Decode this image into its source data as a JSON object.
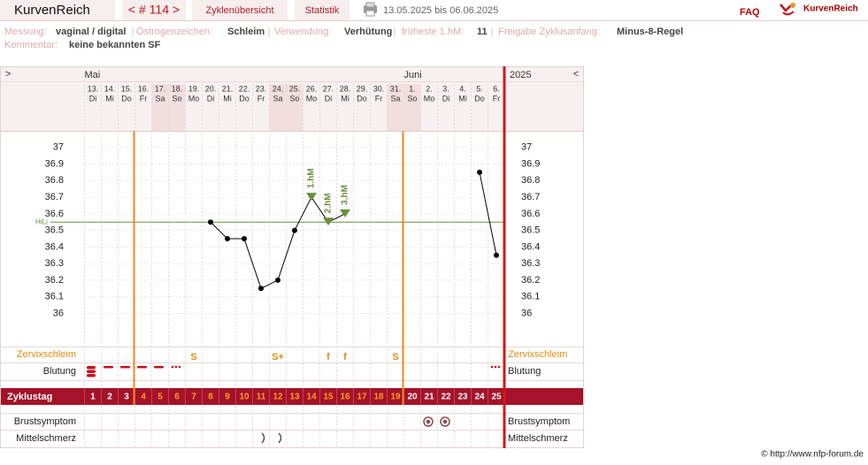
{
  "header": {
    "app": "KurvenReich",
    "cycle_nav": "< # 114 >",
    "tabs": [
      "Zyklenübersicht",
      "Statistik"
    ],
    "date_range": "13.05.2025 bis 06.06.2025",
    "faq": "FAQ",
    "logo": "KurvenReich"
  },
  "info": {
    "rows": [
      [
        {
          "label": "Messung:",
          "value": "vaginal / digital"
        },
        {
          "label": "Östrogenzeichen:",
          "value": "Schleim"
        },
        {
          "label": "Verwendung:",
          "value": "Verhütung"
        },
        {
          "label": "früheste 1.hM:",
          "value": "11"
        },
        {
          "label": "Freigabe Zyklusanfang:",
          "value": "Minus-8-Regel"
        }
      ],
      [
        {
          "label": "Kommentar:",
          "value": "keine bekannten SF"
        }
      ]
    ]
  },
  "chart_data": {
    "type": "line",
    "nav_next": ">",
    "nav_prev": "<",
    "year": "2025",
    "months": [
      {
        "label": "Mai",
        "start": "13."
      },
      {
        "label": "Juni",
        "start": "1."
      }
    ],
    "days": [
      "13.",
      "14.",
      "15.",
      "16.",
      "17.",
      "18.",
      "19.",
      "20.",
      "21.",
      "22.",
      "23.",
      "24.",
      "25.",
      "26.",
      "27.",
      "28.",
      "29.",
      "30.",
      "31.",
      "1.",
      "2.",
      "3.",
      "4.",
      "5.",
      "6."
    ],
    "weekdays": [
      "Di",
      "Mi",
      "Do",
      "Fr",
      "Sa",
      "So",
      "Mo",
      "Di",
      "Mi",
      "Do",
      "Fr",
      "Sa",
      "So",
      "Mo",
      "Di",
      "Mi",
      "Do",
      "Fr",
      "Sa",
      "So",
      "Mo",
      "Di",
      "Mi",
      "Do",
      "Fr"
    ],
    "values": [
      null,
      null,
      null,
      null,
      null,
      null,
      null,
      36.55,
      36.45,
      36.45,
      36.15,
      36.2,
      36.5,
      36.7,
      36.55,
      36.6,
      null,
      null,
      null,
      null,
      null,
      null,
      null,
      36.85,
      36.35
    ],
    "color": "#000000",
    "ylim": [
      35.8,
      37.1
    ],
    "yticks": [
      36,
      36.1,
      36.2,
      36.3,
      36.4,
      36.5,
      36.6,
      36.7,
      36.8,
      36.9,
      37
    ],
    "grid": true,
    "hili": {
      "label": "HiLi",
      "value": 36.55,
      "color": "#6b8e3a"
    },
    "annotations": [
      {
        "text": "1.hM",
        "day": "26."
      },
      {
        "text": "2.hM",
        "day": "27."
      },
      {
        "text": "3.hM",
        "day": "28."
      }
    ],
    "rows": {
      "zervix": {
        "label": "Zervixschleim",
        "values": [
          null,
          null,
          null,
          null,
          null,
          null,
          "S",
          null,
          null,
          null,
          null,
          "S+",
          null,
          null,
          "f",
          "f",
          null,
          null,
          "S",
          null,
          null,
          null,
          null,
          null,
          null
        ]
      },
      "blutung": {
        "label": "Blutung"
      },
      "zyklustag": {
        "label": "Zyklustag",
        "values": [
          1,
          2,
          3,
          4,
          5,
          6,
          7,
          8,
          9,
          10,
          11,
          12,
          13,
          14,
          15,
          16,
          17,
          18,
          19,
          20,
          21,
          22,
          23,
          24,
          25
        ]
      },
      "brust": {
        "label": "Brustsymptom"
      },
      "mittel": {
        "label": "Mittelschmerz"
      }
    }
  },
  "footer": "© http://www.nfp-forum.de"
}
